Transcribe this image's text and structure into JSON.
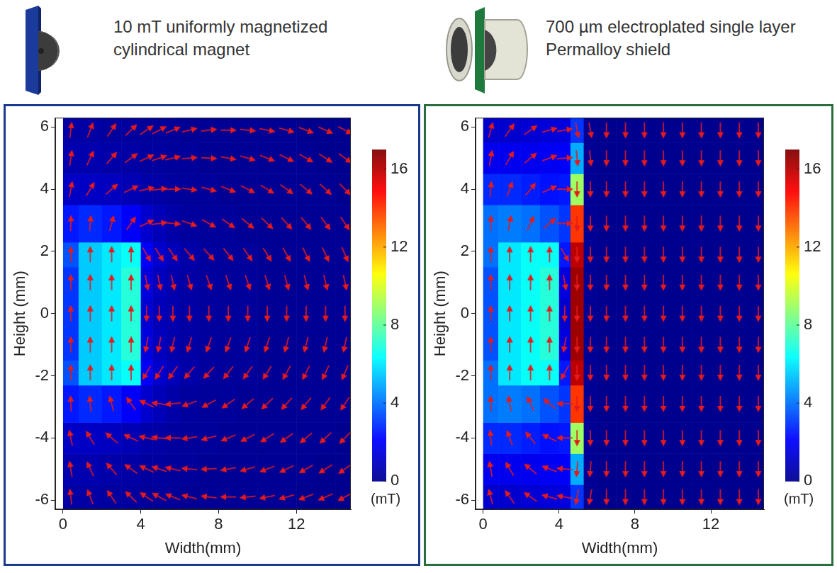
{
  "chart_data": [
    {
      "type": "heatmap",
      "title": "10 mT uniformly magnetized cylindrical magnet",
      "x_label": "Width(mm)",
      "y_label": "Height (mm)",
      "xlim": [
        -0.4,
        14.8
      ],
      "ylim": [
        -6.3,
        6.3
      ],
      "xticks": [
        0,
        4,
        8,
        12
      ],
      "yticks": [
        -6,
        -4,
        -2,
        0,
        2,
        4,
        6
      ],
      "grid": false,
      "marker": "arrow",
      "color": "#e41a1c",
      "x_edges": [
        0,
        0.8,
        2,
        3,
        4,
        4.6,
        5.3,
        6,
        7,
        8,
        9,
        10,
        11,
        12,
        13,
        14,
        15
      ],
      "y_edges": [
        -6.3,
        -5.5,
        -4.5,
        -3.5,
        -2.3,
        -1.5,
        -0.5,
        0.5,
        1.5,
        2.3,
        3.5,
        4.5,
        5.5,
        6.3
      ],
      "cells": [
        [
          0.4,
          0.4,
          0.3,
          0.3,
          0.2,
          0.2,
          0.2,
          0.1,
          0.1,
          0.1,
          0.1,
          0.1,
          0.1,
          0,
          0,
          0
        ],
        [
          0.6,
          0.6,
          0.5,
          0.4,
          0.3,
          0.3,
          0.2,
          0.2,
          0.1,
          0.1,
          0.1,
          0.1,
          0.1,
          0.1,
          0,
          0
        ],
        [
          1.0,
          1.0,
          0.9,
          0.7,
          0.5,
          0.4,
          0.3,
          0.2,
          0.2,
          0.1,
          0.1,
          0.1,
          0.1,
          0.1,
          0.1,
          0
        ],
        [
          2.5,
          2.8,
          2.5,
          2.0,
          1.2,
          0.8,
          0.5,
          0.3,
          0.2,
          0.2,
          0.1,
          0.1,
          0.1,
          0.1,
          0.1,
          0.1
        ],
        [
          3.5,
          5.5,
          6.0,
          6.5,
          2.0,
          1.2,
          0.8,
          0.5,
          0.3,
          0.2,
          0.2,
          0.1,
          0.1,
          0.1,
          0.1,
          0.1
        ],
        [
          3.0,
          5.5,
          6.0,
          7.0,
          1.5,
          0.9,
          0.6,
          0.4,
          0.3,
          0.2,
          0.2,
          0.1,
          0.1,
          0.1,
          0.1,
          0.1
        ],
        [
          3.0,
          5.5,
          6.0,
          7.0,
          1.3,
          0.8,
          0.6,
          0.4,
          0.3,
          0.2,
          0.2,
          0.1,
          0.1,
          0.1,
          0.1,
          0.1
        ],
        [
          3.0,
          5.5,
          6.0,
          7.0,
          1.5,
          0.9,
          0.6,
          0.4,
          0.3,
          0.2,
          0.2,
          0.1,
          0.1,
          0.1,
          0.1,
          0.1
        ],
        [
          3.5,
          5.5,
          6.0,
          6.5,
          2.0,
          1.2,
          0.8,
          0.5,
          0.3,
          0.2,
          0.2,
          0.1,
          0.1,
          0.1,
          0.1,
          0.1
        ],
        [
          2.5,
          2.8,
          2.5,
          2.0,
          1.2,
          0.8,
          0.5,
          0.3,
          0.2,
          0.2,
          0.1,
          0.1,
          0.1,
          0.1,
          0.1,
          0.1
        ],
        [
          1.0,
          1.0,
          0.9,
          0.7,
          0.5,
          0.4,
          0.3,
          0.2,
          0.2,
          0.1,
          0.1,
          0.1,
          0.1,
          0.1,
          0.1,
          0
        ],
        [
          0.6,
          0.6,
          0.5,
          0.4,
          0.3,
          0.3,
          0.2,
          0.2,
          0.1,
          0.1,
          0.1,
          0.1,
          0.1,
          0.1,
          0,
          0
        ],
        [
          0.4,
          0.4,
          0.3,
          0.3,
          0.2,
          0.2,
          0.2,
          0.1,
          0.1,
          0.1,
          0.1,
          0.1,
          0.1,
          0,
          0,
          0
        ]
      ],
      "directions": [
        [
          97,
          111,
          124,
          136,
          146,
          152,
          158,
          166,
          173,
          180,
          -174,
          -169,
          -164,
          -159,
          -156,
          -152
        ],
        [
          99,
          115,
          131,
          144,
          155,
          161,
          167,
          175,
          -177,
          -170,
          -164,
          -159,
          -154,
          -150,
          -147,
          -144
        ],
        [
          101,
          121,
          139,
          155,
          167,
          173,
          179,
          -172,
          -165,
          -158,
          -153,
          -148,
          -144,
          -140,
          -137,
          -134
        ],
        [
          92,
          95,
          105,
          125,
          155,
          172,
          -174,
          -160,
          -151,
          -145,
          -140,
          -136,
          -132,
          -129,
          -126,
          -124
        ],
        [
          90,
          90,
          90,
          90,
          -120,
          -122,
          -125,
          -130,
          -132,
          -128,
          -125,
          -122,
          -119,
          -117,
          -115,
          -113
        ],
        [
          90,
          90,
          90,
          90,
          -100,
          -101,
          -102,
          -106,
          -109,
          -109,
          -108,
          -107,
          -105,
          -104,
          -103,
          -102
        ],
        [
          90,
          90,
          90,
          90,
          -90,
          -90,
          -90,
          -90,
          -90,
          -90,
          -90,
          -90,
          -90,
          -90,
          -90,
          -90
        ],
        [
          90,
          90,
          90,
          90,
          -80,
          -79,
          -78,
          -74,
          -71,
          -71,
          -72,
          -73,
          -75,
          -76,
          -77,
          -78
        ],
        [
          90,
          90,
          90,
          90,
          -60,
          -58,
          -55,
          -50,
          -48,
          -52,
          -55,
          -58,
          -61,
          -63,
          -65,
          -67
        ],
        [
          88,
          85,
          75,
          55,
          25,
          8,
          -6,
          -20,
          -29,
          -35,
          -40,
          -44,
          -48,
          -51,
          -54,
          -56
        ],
        [
          79,
          59,
          41,
          25,
          13,
          7,
          1,
          -8,
          -15,
          -22,
          -27,
          -32,
          -36,
          -40,
          -43,
          -46
        ],
        [
          81,
          65,
          49,
          36,
          25,
          19,
          13,
          5,
          -3,
          -10,
          -16,
          -21,
          -26,
          -30,
          -33,
          -36
        ],
        [
          83,
          69,
          56,
          44,
          34,
          28,
          22,
          14,
          7,
          0,
          -6,
          -11,
          -16,
          -21,
          -24,
          -28
        ]
      ],
      "colorbar": {
        "range": [
          0,
          17
        ],
        "ticks": [
          0,
          4,
          8,
          12,
          16
        ],
        "label": "(mT)"
      }
    },
    {
      "type": "heatmap",
      "title": "700 µm electroplated single layer Permalloy shield",
      "x_label": "Width(mm)",
      "y_label": "Height (mm)",
      "xlim": [
        -0.4,
        14.8
      ],
      "ylim": [
        -6.3,
        6.3
      ],
      "xticks": [
        0,
        4,
        8,
        12
      ],
      "yticks": [
        -6,
        -4,
        -2,
        0,
        2,
        4,
        6
      ],
      "grid": false,
      "marker": "arrow",
      "color": "#e41a1c",
      "x_edges": [
        0,
        0.8,
        2,
        3,
        4,
        4.6,
        5.3,
        6,
        7,
        8,
        9,
        10,
        11,
        12,
        13,
        14,
        15
      ],
      "y_edges": [
        -6.3,
        -5.5,
        -4.5,
        -3.5,
        -2.3,
        -1.5,
        -0.5,
        0.5,
        1.5,
        2.3,
        3.5,
        4.5,
        5.5,
        6.3
      ],
      "cells": [
        [
          1.2,
          1.2,
          1.3,
          1.4,
          1.5,
          3.0,
          0.1,
          0,
          0,
          0,
          0,
          0,
          0,
          0,
          0,
          0
        ],
        [
          1.8,
          1.8,
          1.8,
          1.9,
          2.0,
          5.0,
          0.1,
          0,
          0,
          0,
          0,
          0,
          0,
          0,
          0,
          0
        ],
        [
          2.8,
          2.8,
          2.6,
          2.4,
          2.5,
          9.0,
          0.1,
          0,
          0,
          0,
          0,
          0,
          0,
          0,
          0,
          0
        ],
        [
          4.0,
          4.2,
          4.0,
          3.5,
          3.0,
          14.0,
          0.1,
          0,
          0,
          0,
          0,
          0,
          0,
          0,
          0,
          0
        ],
        [
          4.0,
          6.0,
          6.5,
          6.5,
          2.5,
          16.0,
          0.1,
          0,
          0,
          0,
          0,
          0,
          0,
          0,
          0,
          0
        ],
        [
          3.5,
          6.0,
          6.5,
          7.0,
          1.5,
          16.5,
          0.1,
          0,
          0,
          0,
          0,
          0,
          0,
          0,
          0,
          0
        ],
        [
          3.5,
          6.0,
          6.5,
          7.0,
          1.2,
          16.5,
          0.1,
          0,
          0,
          0,
          0,
          0,
          0,
          0,
          0,
          0
        ],
        [
          3.5,
          6.0,
          6.5,
          7.0,
          1.5,
          16.5,
          0.1,
          0,
          0,
          0,
          0,
          0,
          0,
          0,
          0,
          0
        ],
        [
          4.0,
          6.0,
          6.5,
          6.5,
          2.5,
          16.0,
          0.1,
          0,
          0,
          0,
          0,
          0,
          0,
          0,
          0,
          0
        ],
        [
          4.0,
          4.2,
          4.0,
          3.5,
          3.0,
          14.0,
          0.1,
          0,
          0,
          0,
          0,
          0,
          0,
          0,
          0,
          0
        ],
        [
          2.8,
          2.8,
          2.6,
          2.4,
          2.5,
          9.0,
          0.1,
          0,
          0,
          0,
          0,
          0,
          0,
          0,
          0,
          0
        ],
        [
          1.8,
          1.8,
          1.8,
          1.9,
          2.0,
          5.0,
          0.1,
          0,
          0,
          0,
          0,
          0,
          0,
          0,
          0,
          0
        ],
        [
          1.2,
          1.2,
          1.3,
          1.4,
          1.5,
          3.0,
          0.1,
          0,
          0,
          0,
          0,
          0,
          0,
          0,
          0,
          0
        ]
      ],
      "directions": [
        [
          105,
          125,
          145,
          165,
          170,
          -100,
          -100,
          -90,
          -90,
          -90,
          -90,
          -90,
          -90,
          -90,
          -90,
          -90
        ],
        [
          100,
          120,
          140,
          160,
          175,
          -95,
          -95,
          -90,
          -90,
          -90,
          -90,
          -90,
          -90,
          -90,
          -90,
          -90
        ],
        [
          95,
          110,
          130,
          155,
          180,
          -90,
          -90,
          -90,
          -90,
          -90,
          -90,
          -90,
          -90,
          -90,
          -90,
          -90
        ],
        [
          92,
          100,
          115,
          140,
          180,
          -90,
          -90,
          -90,
          -90,
          -90,
          -90,
          -90,
          -90,
          -90,
          -90,
          -90
        ],
        [
          90,
          90,
          90,
          90,
          -120,
          -90,
          -90,
          -90,
          -90,
          -90,
          -90,
          -90,
          -90,
          -90,
          -90,
          -90
        ],
        [
          90,
          90,
          90,
          90,
          -100,
          -90,
          -90,
          -90,
          -90,
          -90,
          -90,
          -90,
          -90,
          -90,
          -90,
          -90
        ],
        [
          90,
          90,
          90,
          90,
          -90,
          -90,
          -90,
          -90,
          -90,
          -90,
          -90,
          -90,
          -90,
          -90,
          -90,
          -90
        ],
        [
          90,
          90,
          90,
          90,
          -80,
          -90,
          -90,
          -90,
          -90,
          -90,
          -90,
          -90,
          -90,
          -90,
          -90,
          -90
        ],
        [
          90,
          90,
          90,
          90,
          -60,
          -90,
          -90,
          -90,
          -90,
          -90,
          -90,
          -90,
          -90,
          -90,
          -90,
          -90
        ],
        [
          88,
          80,
          65,
          40,
          0,
          -90,
          -90,
          -90,
          -90,
          -90,
          -90,
          -90,
          -90,
          -90,
          -90,
          -90
        ],
        [
          85,
          70,
          50,
          25,
          0,
          -90,
          -90,
          -90,
          -90,
          -90,
          -90,
          -90,
          -90,
          -90,
          -90,
          -90
        ],
        [
          80,
          60,
          40,
          20,
          5,
          -85,
          -85,
          -90,
          -90,
          -90,
          -90,
          -90,
          -90,
          -90,
          -90,
          -90
        ],
        [
          75,
          55,
          35,
          15,
          10,
          -80,
          -80,
          -90,
          -90,
          -90,
          -90,
          -90,
          -90,
          -90,
          -90,
          -90
        ]
      ],
      "colorbar": {
        "range": [
          0,
          17
        ],
        "ticks": [
          0,
          4,
          8,
          12,
          16
        ],
        "label": "(mT)"
      }
    }
  ]
}
